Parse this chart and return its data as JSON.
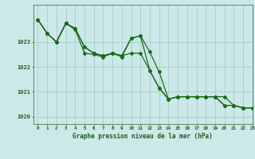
{
  "xlabel": "Graphe pression niveau de la mer (hPa)",
  "xlim": [
    -0.5,
    23
  ],
  "ylim": [
    1019.7,
    1024.5
  ],
  "yticks": [
    1020,
    1021,
    1022,
    1023
  ],
  "xticks": [
    0,
    1,
    2,
    3,
    4,
    5,
    6,
    7,
    8,
    9,
    10,
    11,
    12,
    13,
    14,
    15,
    16,
    17,
    18,
    19,
    20,
    21,
    22,
    23
  ],
  "background_color": "#cce8e8",
  "grid_color": "#9fc8c8",
  "line_color": "#1a6b1a",
  "series1": [
    1023.9,
    1023.35,
    1023.0,
    1023.75,
    1023.55,
    1022.8,
    1022.55,
    1022.45,
    1022.55,
    1022.45,
    1023.15,
    1023.25,
    1022.6,
    1021.8,
    1020.7,
    1020.8,
    1020.8,
    1020.8,
    1020.8,
    1020.8,
    1020.8,
    1020.45,
    1020.35,
    1020.35
  ],
  "series2": [
    1023.9,
    1023.35,
    1023.0,
    1023.75,
    1023.55,
    1022.8,
    1022.55,
    1022.45,
    1022.55,
    1022.45,
    1022.55,
    1022.55,
    1021.85,
    1021.15,
    1020.7,
    1020.8,
    1020.8,
    1020.8,
    1020.8,
    1020.8,
    1020.45,
    1020.45,
    1020.35,
    1020.35
  ],
  "series3": [
    1023.9,
    1023.35,
    1023.0,
    1023.75,
    1023.5,
    1022.55,
    1022.5,
    1022.4,
    1022.55,
    1022.4,
    1023.15,
    1023.25,
    1021.85,
    1021.15,
    1020.7,
    1020.8,
    1020.8,
    1020.8,
    1020.8,
    1020.8,
    1020.45,
    1020.45,
    1020.35,
    1020.35
  ]
}
